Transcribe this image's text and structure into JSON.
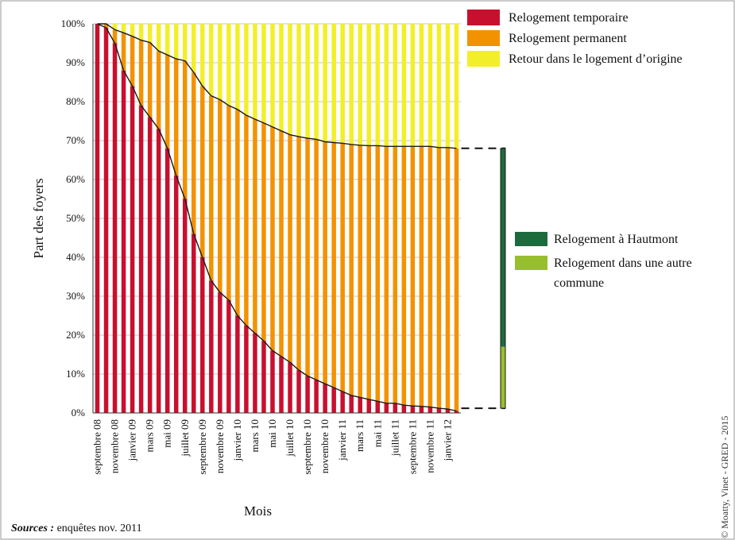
{
  "chart_data": {
    "type": "bar",
    "stacked": true,
    "ylabel": "Part des foyers",
    "xlabel": "Mois",
    "ylim": [
      0,
      100
    ],
    "yticks": [
      "0%",
      "10%",
      "20%",
      "30%",
      "40%",
      "50%",
      "60%",
      "70%",
      "80%",
      "90%",
      "100%"
    ],
    "x_tick_labels": [
      "septembre 08",
      "novembre 08",
      "janvier 09",
      "mars 09",
      "mai 09",
      "juillet 09",
      "septembre 09",
      "novembre 09",
      "janvier 10",
      "mars 10",
      "mai 10",
      "juillet 10",
      "septembre 10",
      "novembre 10",
      "janvier 11",
      "mars 11",
      "mai 11",
      "juillet 11",
      "septembre 11",
      "novembre 11",
      "janvier 12"
    ],
    "series": [
      {
        "name": "Relogement temporaire",
        "color": "#c8102e",
        "values": [
          100,
          99,
          95,
          88,
          84,
          79,
          76,
          73,
          68,
          61,
          55,
          46,
          40,
          34,
          31,
          29,
          25,
          22.5,
          20.5,
          18.5,
          16,
          14.5,
          13,
          11,
          9.5,
          8.5,
          7.5,
          6.5,
          5.5,
          4.5,
          4,
          3.5,
          3,
          2.5,
          2.5,
          2,
          1.8,
          1.7,
          1.5,
          1.2,
          1,
          0.5
        ]
      },
      {
        "name": "Relogement permanent",
        "color": "#f39200",
        "values": [
          0,
          1,
          3.5,
          9.7,
          12.8,
          16.8,
          19.2,
          20,
          24,
          30,
          35.5,
          41.5,
          44,
          47.5,
          49.5,
          50,
          53,
          54,
          55,
          56,
          57.5,
          58,
          58.5,
          60,
          61.1,
          61.8,
          62.2,
          63,
          63.8,
          64.5,
          64.8,
          65.2,
          65.7,
          66,
          66,
          66.5,
          66.7,
          66.8,
          67,
          67,
          67.2,
          67.5
        ]
      },
      {
        "name": "Retour dans le logement d’origine",
        "color": "#f2ef2a",
        "values": [
          0,
          0,
          1.5,
          2.3,
          3.2,
          4.2,
          4.8,
          7,
          8,
          9,
          9.5,
          12.5,
          16,
          18.5,
          19.5,
          21,
          22,
          23.5,
          24.5,
          25.5,
          26.5,
          27.5,
          28.5,
          29,
          29.4,
          29.7,
          30.3,
          30.5,
          30.7,
          31,
          31.2,
          31.3,
          31.3,
          31.5,
          31.5,
          31.5,
          31.5,
          31.5,
          31.5,
          31.8,
          31.8,
          32
        ]
      }
    ],
    "bracket": {
      "range": [
        1.2,
        68
      ],
      "segments": [
        {
          "name": "Relogement à Hautmont",
          "color": "#1d6b3c",
          "from": 17,
          "to": 68
        },
        {
          "name": "Relogement dans une autre commune",
          "color": "#97bf2d",
          "from": 1.2,
          "to": 17
        }
      ]
    }
  },
  "footer": {
    "sources_label": "Sources :",
    "sources_text": " enquêtes  nov. 2011",
    "credit": "© Moatty, Vinet - GRED - 2015"
  }
}
